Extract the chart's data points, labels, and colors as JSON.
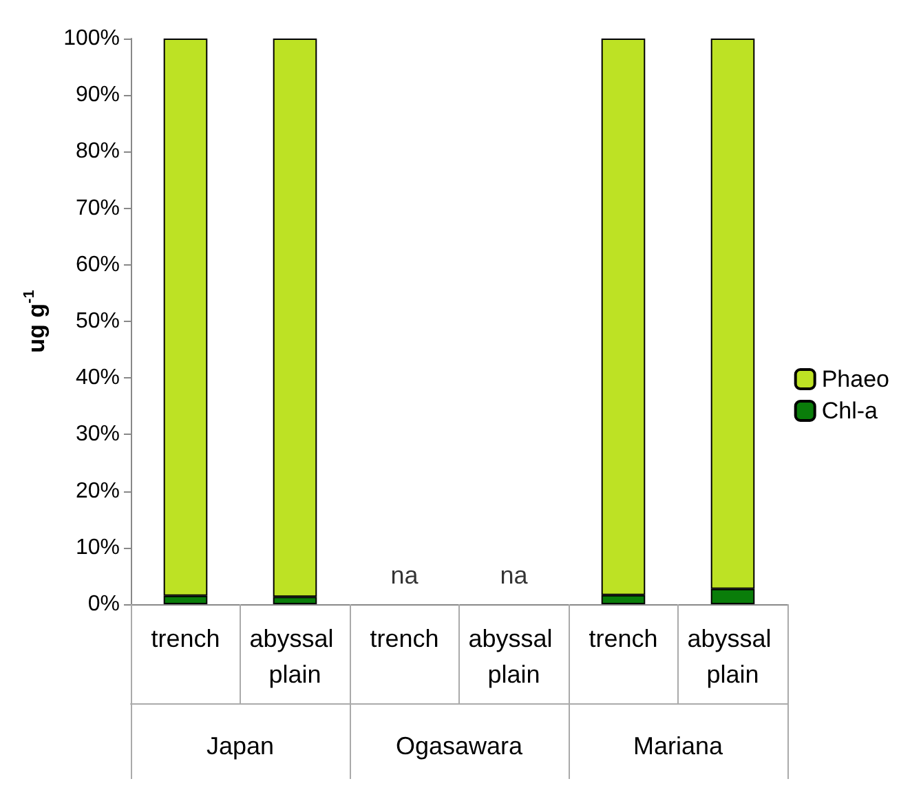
{
  "chart_data": {
    "type": "bar",
    "stacked": true,
    "ylabel": "ug g$^{-1}$",
    "categories": [
      "trench",
      "abyssal plain",
      "trench",
      "abyssal plain",
      "trench",
      "abyssal plain"
    ],
    "series": [
      {
        "name": "Chl-a",
        "color": "#0a7d0a",
        "values": [
          1.5,
          1.3,
          null,
          null,
          1.6,
          2.7
        ]
      },
      {
        "name": "Phaeo",
        "color": "#bde224",
        "values": [
          98.5,
          98.7,
          null,
          null,
          98.4,
          97.3
        ]
      }
    ],
    "ylim": [
      0,
      100
    ],
    "yticks": [
      {
        "value": 0,
        "label": "0%"
      },
      {
        "value": 10,
        "label": "10%"
      },
      {
        "value": 20,
        "label": "20%"
      },
      {
        "value": 30,
        "label": "30%"
      },
      {
        "value": 40,
        "label": "40%"
      },
      {
        "value": 50,
        "label": "50%"
      },
      {
        "value": 60,
        "label": "60%"
      },
      {
        "value": 70,
        "label": "70%"
      },
      {
        "value": 80,
        "label": "80%"
      },
      {
        "value": 90,
        "label": "90%"
      },
      {
        "value": 100,
        "label": "100%"
      }
    ],
    "annotations": [
      "Japan",
      "Ogasawara",
      "Mariana",
      "na",
      "na"
    ],
    "grid": false,
    "legend": "right"
  }
}
